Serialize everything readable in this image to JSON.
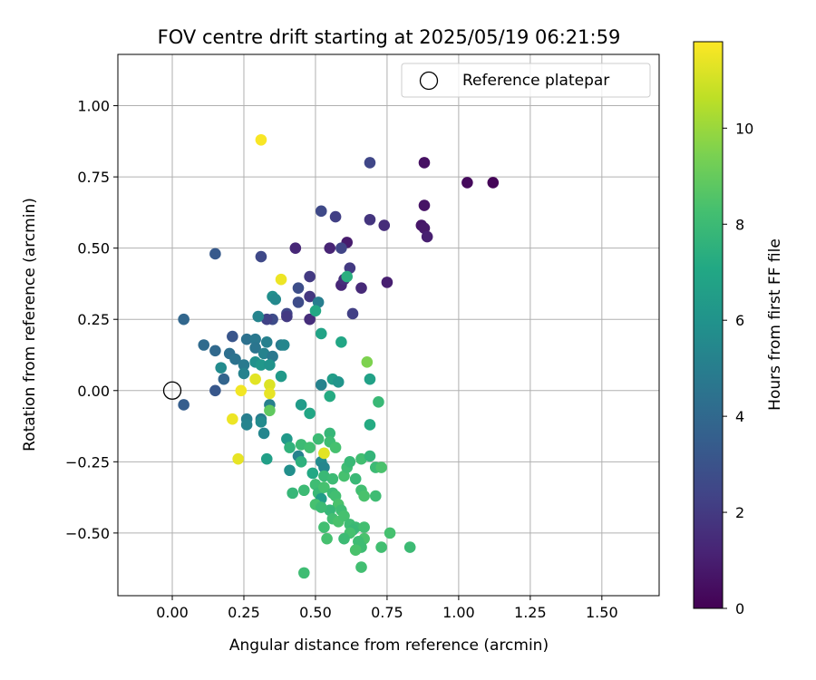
{
  "chart_data": {
    "type": "scatter",
    "title": "FOV centre drift starting at 2025/05/19 06:21:59",
    "xlabel": "Angular distance from reference (arcmin)",
    "ylabel": "Rotation from reference (arcmin)",
    "xlim": [
      -0.19,
      1.7
    ],
    "ylim": [
      -0.72,
      1.18
    ],
    "xticks": [
      "0.00",
      "0.25",
      "0.50",
      "0.75",
      "1.00",
      "1.25",
      "1.50"
    ],
    "yticks": [
      "−0.50",
      "−0.25",
      "0.00",
      "0.25",
      "0.50",
      "0.75",
      "1.00"
    ],
    "grid": true,
    "legend": {
      "position": "top-right",
      "entries": [
        "Reference platepar"
      ]
    },
    "reference_point": {
      "x": 0.0,
      "y": 0.0,
      "label": "Reference platepar"
    },
    "colorbar": {
      "label": "Hours from first FF file",
      "colormap": "viridis",
      "range": [
        0,
        11.8
      ],
      "ticks": [
        "0",
        "2",
        "4",
        "6",
        "8",
        "10"
      ]
    },
    "points": [
      {
        "x": 1.12,
        "y": 0.73,
        "h": 0.1
      },
      {
        "x": 1.03,
        "y": 0.73,
        "h": 0.3
      },
      {
        "x": 0.88,
        "y": 0.8,
        "h": 0.5
      },
      {
        "x": 0.88,
        "y": 0.65,
        "h": 0.6
      },
      {
        "x": 0.87,
        "y": 0.58,
        "h": 0.7
      },
      {
        "x": 0.88,
        "y": 0.57,
        "h": 0.8
      },
      {
        "x": 0.89,
        "y": 0.54,
        "h": 1.0
      },
      {
        "x": 0.69,
        "y": 0.8,
        "h": 2.5
      },
      {
        "x": 0.69,
        "y": 0.6,
        "h": 1.8
      },
      {
        "x": 0.74,
        "y": 0.58,
        "h": 1.5
      },
      {
        "x": 0.75,
        "y": 0.38,
        "h": 1.0
      },
      {
        "x": 0.61,
        "y": 0.52,
        "h": 0.9
      },
      {
        "x": 0.57,
        "y": 0.61,
        "h": 2.2
      },
      {
        "x": 0.52,
        "y": 0.63,
        "h": 2.6
      },
      {
        "x": 0.55,
        "y": 0.5,
        "h": 1.2
      },
      {
        "x": 0.59,
        "y": 0.5,
        "h": 2.4
      },
      {
        "x": 0.62,
        "y": 0.43,
        "h": 2.0
      },
      {
        "x": 0.59,
        "y": 0.37,
        "h": 1.3
      },
      {
        "x": 0.6,
        "y": 0.39,
        "h": 1.6
      },
      {
        "x": 0.66,
        "y": 0.36,
        "h": 1.4
      },
      {
        "x": 0.63,
        "y": 0.27,
        "h": 2.2
      },
      {
        "x": 0.43,
        "y": 0.5,
        "h": 1.3
      },
      {
        "x": 0.48,
        "y": 0.4,
        "h": 2.0
      },
      {
        "x": 0.44,
        "y": 0.36,
        "h": 2.8
      },
      {
        "x": 0.44,
        "y": 0.31,
        "h": 2.7
      },
      {
        "x": 0.48,
        "y": 0.33,
        "h": 1.9
      },
      {
        "x": 0.51,
        "y": 0.31,
        "h": 5.0
      },
      {
        "x": 0.48,
        "y": 0.25,
        "h": 1.5
      },
      {
        "x": 0.4,
        "y": 0.27,
        "h": 2.5
      },
      {
        "x": 0.4,
        "y": 0.26,
        "h": 2.0
      },
      {
        "x": 0.35,
        "y": 0.25,
        "h": 2.7
      },
      {
        "x": 0.33,
        "y": 0.25,
        "h": 2.3
      },
      {
        "x": 0.31,
        "y": 0.47,
        "h": 2.6
      },
      {
        "x": 0.15,
        "y": 0.48,
        "h": 3.3
      },
      {
        "x": 0.04,
        "y": 0.25,
        "h": 3.9
      },
      {
        "x": 0.21,
        "y": 0.19,
        "h": 3.1
      },
      {
        "x": 0.11,
        "y": 0.16,
        "h": 4.1
      },
      {
        "x": 0.15,
        "y": 0.14,
        "h": 4.0
      },
      {
        "x": 0.2,
        "y": 0.13,
        "h": 4.3
      },
      {
        "x": 0.22,
        "y": 0.11,
        "h": 4.5
      },
      {
        "x": 0.25,
        "y": 0.09,
        "h": 4.8
      },
      {
        "x": 0.17,
        "y": 0.08,
        "h": 5.6
      },
      {
        "x": 0.25,
        "y": 0.06,
        "h": 5.2
      },
      {
        "x": 0.18,
        "y": 0.04,
        "h": 3.8
      },
      {
        "x": 0.15,
        "y": 0.0,
        "h": 3.2
      },
      {
        "x": 0.04,
        "y": -0.05,
        "h": 3.5
      },
      {
        "x": 0.26,
        "y": 0.18,
        "h": 4.4
      },
      {
        "x": 0.29,
        "y": 0.18,
        "h": 4.7
      },
      {
        "x": 0.3,
        "y": 0.26,
        "h": 5.3
      },
      {
        "x": 0.35,
        "y": 0.33,
        "h": 5.8
      },
      {
        "x": 0.36,
        "y": 0.32,
        "h": 5.5
      },
      {
        "x": 0.38,
        "y": 0.16,
        "h": 4.9
      },
      {
        "x": 0.39,
        "y": 0.16,
        "h": 5.4
      },
      {
        "x": 0.33,
        "y": 0.17,
        "h": 5.1
      },
      {
        "x": 0.29,
        "y": 0.15,
        "h": 4.6
      },
      {
        "x": 0.32,
        "y": 0.13,
        "h": 5.2
      },
      {
        "x": 0.35,
        "y": 0.12,
        "h": 4.7
      },
      {
        "x": 0.29,
        "y": 0.1,
        "h": 5.9
      },
      {
        "x": 0.31,
        "y": 0.09,
        "h": 6.2
      },
      {
        "x": 0.34,
        "y": 0.09,
        "h": 6.0
      },
      {
        "x": 0.38,
        "y": 0.05,
        "h": 6.3
      },
      {
        "x": 0.26,
        "y": -0.1,
        "h": 5.0
      },
      {
        "x": 0.26,
        "y": -0.12,
        "h": 5.3
      },
      {
        "x": 0.31,
        "y": -0.1,
        "h": 4.9
      },
      {
        "x": 0.31,
        "y": -0.11,
        "h": 5.6
      },
      {
        "x": 0.32,
        "y": -0.15,
        "h": 5.4
      },
      {
        "x": 0.34,
        "y": -0.05,
        "h": 5.1
      },
      {
        "x": 0.33,
        "y": -0.24,
        "h": 6.6
      },
      {
        "x": 0.41,
        "y": -0.28,
        "h": 5.8
      },
      {
        "x": 0.44,
        "y": -0.23,
        "h": 5.2
      },
      {
        "x": 0.45,
        "y": -0.05,
        "h": 6.4
      },
      {
        "x": 0.48,
        "y": -0.08,
        "h": 7.0
      },
      {
        "x": 0.5,
        "y": 0.28,
        "h": 7.1
      },
      {
        "x": 0.52,
        "y": 0.2,
        "h": 6.8
      },
      {
        "x": 0.52,
        "y": 0.02,
        "h": 5.2
      },
      {
        "x": 0.55,
        "y": -0.02,
        "h": 7.2
      },
      {
        "x": 0.56,
        "y": 0.04,
        "h": 6.5
      },
      {
        "x": 0.58,
        "y": 0.03,
        "h": 6.1
      },
      {
        "x": 0.59,
        "y": 0.17,
        "h": 7.0
      },
      {
        "x": 0.61,
        "y": 0.4,
        "h": 7.4
      },
      {
        "x": 0.69,
        "y": 0.04,
        "h": 6.7
      },
      {
        "x": 0.72,
        "y": -0.04,
        "h": 7.9
      },
      {
        "x": 0.69,
        "y": -0.12,
        "h": 7.2
      },
      {
        "x": 0.68,
        "y": 0.1,
        "h": 9.5
      },
      {
        "x": 0.4,
        "y": -0.17,
        "h": 6.3
      },
      {
        "x": 0.41,
        "y": -0.2,
        "h": 7.6
      },
      {
        "x": 0.45,
        "y": -0.19,
        "h": 8.0
      },
      {
        "x": 0.48,
        "y": -0.2,
        "h": 8.2
      },
      {
        "x": 0.51,
        "y": -0.17,
        "h": 8.0
      },
      {
        "x": 0.55,
        "y": -0.15,
        "h": 7.8
      },
      {
        "x": 0.55,
        "y": -0.18,
        "h": 8.1
      },
      {
        "x": 0.57,
        "y": -0.2,
        "h": 8.3
      },
      {
        "x": 0.53,
        "y": -0.22,
        "h": 9.8
      },
      {
        "x": 0.52,
        "y": -0.25,
        "h": 5.6
      },
      {
        "x": 0.53,
        "y": -0.27,
        "h": 5.4
      },
      {
        "x": 0.49,
        "y": -0.29,
        "h": 7.1
      },
      {
        "x": 0.45,
        "y": -0.25,
        "h": 7.5
      },
      {
        "x": 0.53,
        "y": -0.3,
        "h": 7.9
      },
      {
        "x": 0.56,
        "y": -0.31,
        "h": 8.0
      },
      {
        "x": 0.6,
        "y": -0.3,
        "h": 8.3
      },
      {
        "x": 0.61,
        "y": -0.27,
        "h": 8.1
      },
      {
        "x": 0.62,
        "y": -0.25,
        "h": 7.9
      },
      {
        "x": 0.66,
        "y": -0.24,
        "h": 8.2
      },
      {
        "x": 0.69,
        "y": -0.23,
        "h": 7.7
      },
      {
        "x": 0.71,
        "y": -0.27,
        "h": 8.0
      },
      {
        "x": 0.73,
        "y": -0.27,
        "h": 8.4
      },
      {
        "x": 0.64,
        "y": -0.31,
        "h": 7.9
      },
      {
        "x": 0.66,
        "y": -0.35,
        "h": 8.2
      },
      {
        "x": 0.67,
        "y": -0.37,
        "h": 8.4
      },
      {
        "x": 0.71,
        "y": -0.37,
        "h": 8.1
      },
      {
        "x": 0.42,
        "y": -0.36,
        "h": 7.8
      },
      {
        "x": 0.46,
        "y": -0.35,
        "h": 8.0
      },
      {
        "x": 0.5,
        "y": -0.33,
        "h": 8.1
      },
      {
        "x": 0.51,
        "y": -0.36,
        "h": 7.9
      },
      {
        "x": 0.52,
        "y": -0.38,
        "h": 6.5
      },
      {
        "x": 0.53,
        "y": -0.34,
        "h": 8.3
      },
      {
        "x": 0.56,
        "y": -0.36,
        "h": 8.0
      },
      {
        "x": 0.57,
        "y": -0.37,
        "h": 8.2
      },
      {
        "x": 0.58,
        "y": -0.4,
        "h": 8.4
      },
      {
        "x": 0.59,
        "y": -0.42,
        "h": 8.1
      },
      {
        "x": 0.55,
        "y": -0.42,
        "h": 7.8
      },
      {
        "x": 0.5,
        "y": -0.4,
        "h": 8.3
      },
      {
        "x": 0.52,
        "y": -0.41,
        "h": 8.0
      },
      {
        "x": 0.56,
        "y": -0.45,
        "h": 8.2
      },
      {
        "x": 0.58,
        "y": -0.46,
        "h": 8.4
      },
      {
        "x": 0.6,
        "y": -0.44,
        "h": 8.3
      },
      {
        "x": 0.62,
        "y": -0.47,
        "h": 8.1
      },
      {
        "x": 0.64,
        "y": -0.48,
        "h": 8.0
      },
      {
        "x": 0.67,
        "y": -0.48,
        "h": 8.2
      },
      {
        "x": 0.63,
        "y": -0.49,
        "h": 7.9
      },
      {
        "x": 0.67,
        "y": -0.52,
        "h": 8.4
      },
      {
        "x": 0.65,
        "y": -0.53,
        "h": 8.1
      },
      {
        "x": 0.62,
        "y": -0.5,
        "h": 8.3
      },
      {
        "x": 0.6,
        "y": -0.52,
        "h": 8.0
      },
      {
        "x": 0.53,
        "y": -0.48,
        "h": 8.2
      },
      {
        "x": 0.54,
        "y": -0.52,
        "h": 8.3
      },
      {
        "x": 0.66,
        "y": -0.55,
        "h": 8.1
      },
      {
        "x": 0.64,
        "y": -0.56,
        "h": 8.4
      },
      {
        "x": 0.73,
        "y": -0.55,
        "h": 8.2
      },
      {
        "x": 0.76,
        "y": -0.5,
        "h": 8.3
      },
      {
        "x": 0.83,
        "y": -0.55,
        "h": 8.0
      },
      {
        "x": 0.66,
        "y": -0.62,
        "h": 8.2
      },
      {
        "x": 0.46,
        "y": -0.64,
        "h": 8.1
      },
      {
        "x": 0.34,
        "y": -0.07,
        "h": 8.9
      },
      {
        "x": 0.31,
        "y": 0.88,
        "h": 11.7
      },
      {
        "x": 0.38,
        "y": 0.39,
        "h": 11.5
      },
      {
        "x": 0.29,
        "y": 0.04,
        "h": 11.3
      },
      {
        "x": 0.34,
        "y": 0.02,
        "h": 11.2
      },
      {
        "x": 0.34,
        "y": -0.01,
        "h": 11.4
      },
      {
        "x": 0.24,
        "y": 0.0,
        "h": 11.6
      },
      {
        "x": 0.21,
        "y": -0.1,
        "h": 11.5
      },
      {
        "x": 0.23,
        "y": -0.24,
        "h": 11.4
      },
      {
        "x": 0.53,
        "y": -0.22,
        "h": 11.3
      }
    ]
  }
}
